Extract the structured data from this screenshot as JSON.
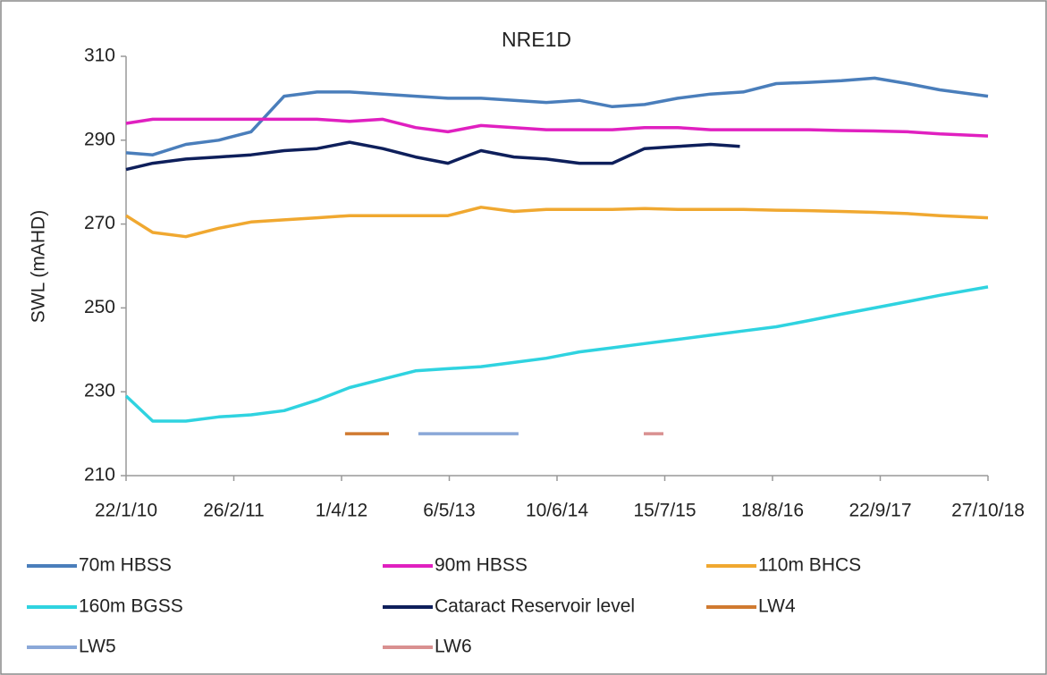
{
  "chart_data": {
    "type": "line",
    "title": "NRE1D",
    "y_label": "SWL (mAHD)",
    "xlim": [
      "2010-01-22",
      "2018-10-27"
    ],
    "xticks": [
      {
        "value": "2010-01-22",
        "label": "22/1/10"
      },
      {
        "value": "2011-02-26",
        "label": "26/2/11"
      },
      {
        "value": "2012-04-01",
        "label": "1/4/12"
      },
      {
        "value": "2013-05-06",
        "label": "6/5/13"
      },
      {
        "value": "2014-06-10",
        "label": "10/6/14"
      },
      {
        "value": "2015-07-15",
        "label": "15/7/15"
      },
      {
        "value": "2016-08-18",
        "label": "18/8/16"
      },
      {
        "value": "2017-09-22",
        "label": "22/9/17"
      },
      {
        "value": "2018-10-27",
        "label": "27/10/18"
      }
    ],
    "ylim": [
      210,
      310
    ],
    "yticks": [
      210,
      230,
      250,
      270,
      290,
      310
    ],
    "grid": false,
    "legend": "bottom",
    "series": [
      {
        "name": "70m HBSS",
        "color": "#4a7ebb",
        "x": [
          "2010-01-22",
          "2010-05-01",
          "2010-09-01",
          "2011-01-01",
          "2011-05-01",
          "2011-09-01",
          "2012-01-01",
          "2012-05-01",
          "2012-09-01",
          "2013-01-01",
          "2013-05-01",
          "2013-09-01",
          "2014-01-01",
          "2014-05-01",
          "2014-09-01",
          "2015-01-01",
          "2015-05-01",
          "2015-09-01",
          "2016-01-01",
          "2016-05-01",
          "2016-09-01",
          "2017-01-01",
          "2017-05-01",
          "2017-09-01",
          "2018-01-01",
          "2018-05-01",
          "2018-10-27"
        ],
        "values": [
          287,
          286.5,
          289,
          290,
          292,
          300.5,
          301.5,
          301.5,
          301,
          300.5,
          300,
          300,
          299.5,
          299,
          299.5,
          298,
          298.5,
          300,
          301,
          301.5,
          303.5,
          303.8,
          304.2,
          304.8,
          303.5,
          302,
          300.5
        ]
      },
      {
        "name": "90m HBSS",
        "color": "#e020c0",
        "x": [
          "2010-01-22",
          "2010-05-01",
          "2010-09-01",
          "2011-01-01",
          "2011-05-01",
          "2011-09-01",
          "2012-01-01",
          "2012-05-01",
          "2012-09-01",
          "2013-01-01",
          "2013-05-01",
          "2013-09-01",
          "2014-01-01",
          "2014-05-01",
          "2014-09-01",
          "2015-01-01",
          "2015-05-01",
          "2015-09-01",
          "2016-01-01",
          "2016-05-01",
          "2016-09-01",
          "2017-01-01",
          "2017-05-01",
          "2017-09-01",
          "2018-01-01",
          "2018-05-01",
          "2018-10-27"
        ],
        "values": [
          294,
          295,
          295,
          295,
          295,
          295,
          295,
          294.5,
          295,
          293,
          292,
          293.5,
          293,
          292.5,
          292.5,
          292.5,
          293,
          293,
          292.5,
          292.5,
          292.5,
          292.5,
          292.3,
          292.2,
          292,
          291.5,
          291
        ]
      },
      {
        "name": "110m BHCS",
        "color": "#f0a830",
        "x": [
          "2010-01-22",
          "2010-05-01",
          "2010-09-01",
          "2011-01-01",
          "2011-05-01",
          "2011-09-01",
          "2012-01-01",
          "2012-05-01",
          "2012-09-01",
          "2013-01-01",
          "2013-05-01",
          "2013-09-01",
          "2014-01-01",
          "2014-05-01",
          "2014-09-01",
          "2015-01-01",
          "2015-05-01",
          "2015-09-01",
          "2016-01-01",
          "2016-05-01",
          "2016-09-01",
          "2017-01-01",
          "2017-05-01",
          "2017-09-01",
          "2018-01-01",
          "2018-05-01",
          "2018-10-27"
        ],
        "values": [
          272,
          268,
          267,
          269,
          270.5,
          271,
          271.5,
          272,
          272,
          272,
          272,
          274,
          273,
          273.5,
          273.5,
          273.5,
          273.7,
          273.5,
          273.5,
          273.5,
          273.3,
          273.2,
          273,
          272.8,
          272.5,
          272,
          271.5
        ]
      },
      {
        "name": "160m BGSS",
        "color": "#2fd3e0",
        "x": [
          "2010-01-22",
          "2010-05-01",
          "2010-09-01",
          "2011-01-01",
          "2011-05-01",
          "2011-09-01",
          "2012-01-01",
          "2012-05-01",
          "2012-09-01",
          "2013-01-01",
          "2013-05-01",
          "2013-09-01",
          "2014-01-01",
          "2014-05-01",
          "2014-09-01",
          "2015-01-01",
          "2015-05-01",
          "2015-09-01",
          "2016-01-01",
          "2016-05-01",
          "2016-09-01",
          "2017-01-01",
          "2017-05-01",
          "2017-09-01",
          "2018-01-01",
          "2018-05-01",
          "2018-10-27"
        ],
        "values": [
          229,
          223,
          223,
          224,
          224.5,
          225.5,
          228,
          231,
          233,
          235,
          235.5,
          236,
          237,
          238,
          239.5,
          240.5,
          241.5,
          242.5,
          243.5,
          244.5,
          245.5,
          247,
          248.5,
          250,
          251.5,
          253,
          255
        ]
      },
      {
        "name": "Cataract Reservoir level",
        "color": "#0e1f5b",
        "x": [
          "2010-01-22",
          "2010-05-01",
          "2010-09-01",
          "2011-01-01",
          "2011-05-01",
          "2011-09-01",
          "2012-01-01",
          "2012-05-01",
          "2012-09-01",
          "2013-01-01",
          "2013-05-01",
          "2013-09-01",
          "2014-01-01",
          "2014-05-01",
          "2014-09-01",
          "2015-01-01",
          "2015-05-01",
          "2015-09-01",
          "2016-01-01",
          "2016-04-19"
        ],
        "values": [
          283,
          284.5,
          285.5,
          286,
          286.5,
          287.5,
          288,
          289.5,
          288,
          286,
          284.5,
          287.5,
          286,
          285.5,
          284.5,
          284.5,
          288,
          288.5,
          289,
          288.5
        ]
      },
      {
        "name": "LW4",
        "color": "#d07a30",
        "x": [
          "2012-04-14",
          "2012-09-24"
        ],
        "values": [
          220,
          220
        ]
      },
      {
        "name": "LW5",
        "color": "#8aa8d8",
        "x": [
          "2013-01-11",
          "2014-01-18"
        ],
        "values": [
          220,
          220
        ]
      },
      {
        "name": "LW6",
        "color": "#d99090",
        "x": [
          "2015-04-28",
          "2015-07-10"
        ],
        "values": [
          220,
          220
        ]
      }
    ]
  }
}
